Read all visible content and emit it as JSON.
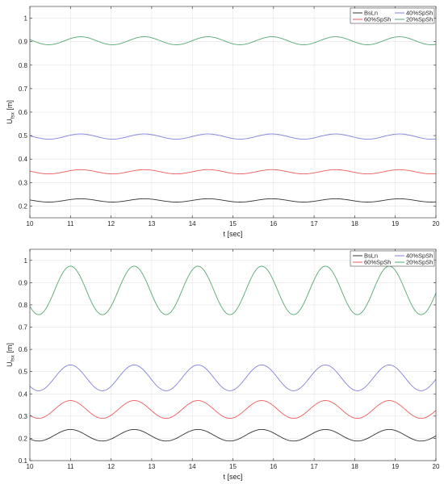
{
  "chart_data": [
    {
      "type": "line",
      "xlabel": "t [sec]",
      "ylabel": "U",
      "ylabel_sub": "fsx",
      "ylabel_unit": " [m]",
      "xlim": [
        10,
        20
      ],
      "ylim": [
        0.15,
        1.05
      ],
      "xticks": [
        10,
        11,
        12,
        13,
        14,
        15,
        16,
        17,
        18,
        19,
        20
      ],
      "yticks": [
        0.2,
        0.3,
        0.4,
        0.5,
        0.6,
        0.7,
        0.8,
        0.9,
        1
      ],
      "grid": true,
      "legend_position": "top-right",
      "legend_order": [
        0,
        2,
        1,
        3
      ],
      "period": 1.57,
      "series": [
        {
          "name": "BsLn",
          "color": "#333333",
          "mean": 0.224,
          "amplitude": 0.007,
          "phase_peak_t": 11.25
        },
        {
          "name": "40%SpSh",
          "color": "#8080e0",
          "mean": 0.496,
          "amplitude": 0.011,
          "phase_peak_t": 11.25
        },
        {
          "name": "60%SpSh",
          "color": "#ee5a5a",
          "mean": 0.346,
          "amplitude": 0.009,
          "phase_peak_t": 11.25
        },
        {
          "name": "20%SpSh",
          "color": "#55a870",
          "mean": 0.904,
          "amplitude": 0.017,
          "phase_peak_t": 11.25
        }
      ]
    },
    {
      "type": "line",
      "xlabel": "t [sec]",
      "ylabel": "U",
      "ylabel_sub": "fsx",
      "ylabel_unit": " [m]",
      "xlim": [
        10,
        20
      ],
      "ylim": [
        0.1,
        1.05
      ],
      "xticks": [
        10,
        11,
        12,
        13,
        14,
        15,
        16,
        17,
        18,
        19,
        20
      ],
      "yticks": [
        0.1,
        0.2,
        0.3,
        0.4,
        0.5,
        0.6,
        0.7,
        0.8,
        0.9,
        1
      ],
      "grid": true,
      "legend_position": "top-right",
      "legend_order": [
        0,
        2,
        1,
        3
      ],
      "period": 1.57,
      "series": [
        {
          "name": "BsLn",
          "color": "#333333",
          "mean": 0.214,
          "amplitude": 0.026,
          "phase_peak_t": 11.0
        },
        {
          "name": "40%SpSh",
          "color": "#8080e0",
          "mean": 0.472,
          "amplitude": 0.058,
          "phase_peak_t": 11.0
        },
        {
          "name": "60%SpSh",
          "color": "#ee5a5a",
          "mean": 0.33,
          "amplitude": 0.04,
          "phase_peak_t": 11.0
        },
        {
          "name": "20%SpSh",
          "color": "#55a870",
          "mean": 0.865,
          "amplitude": 0.109,
          "phase_peak_t": 11.0
        }
      ]
    }
  ]
}
